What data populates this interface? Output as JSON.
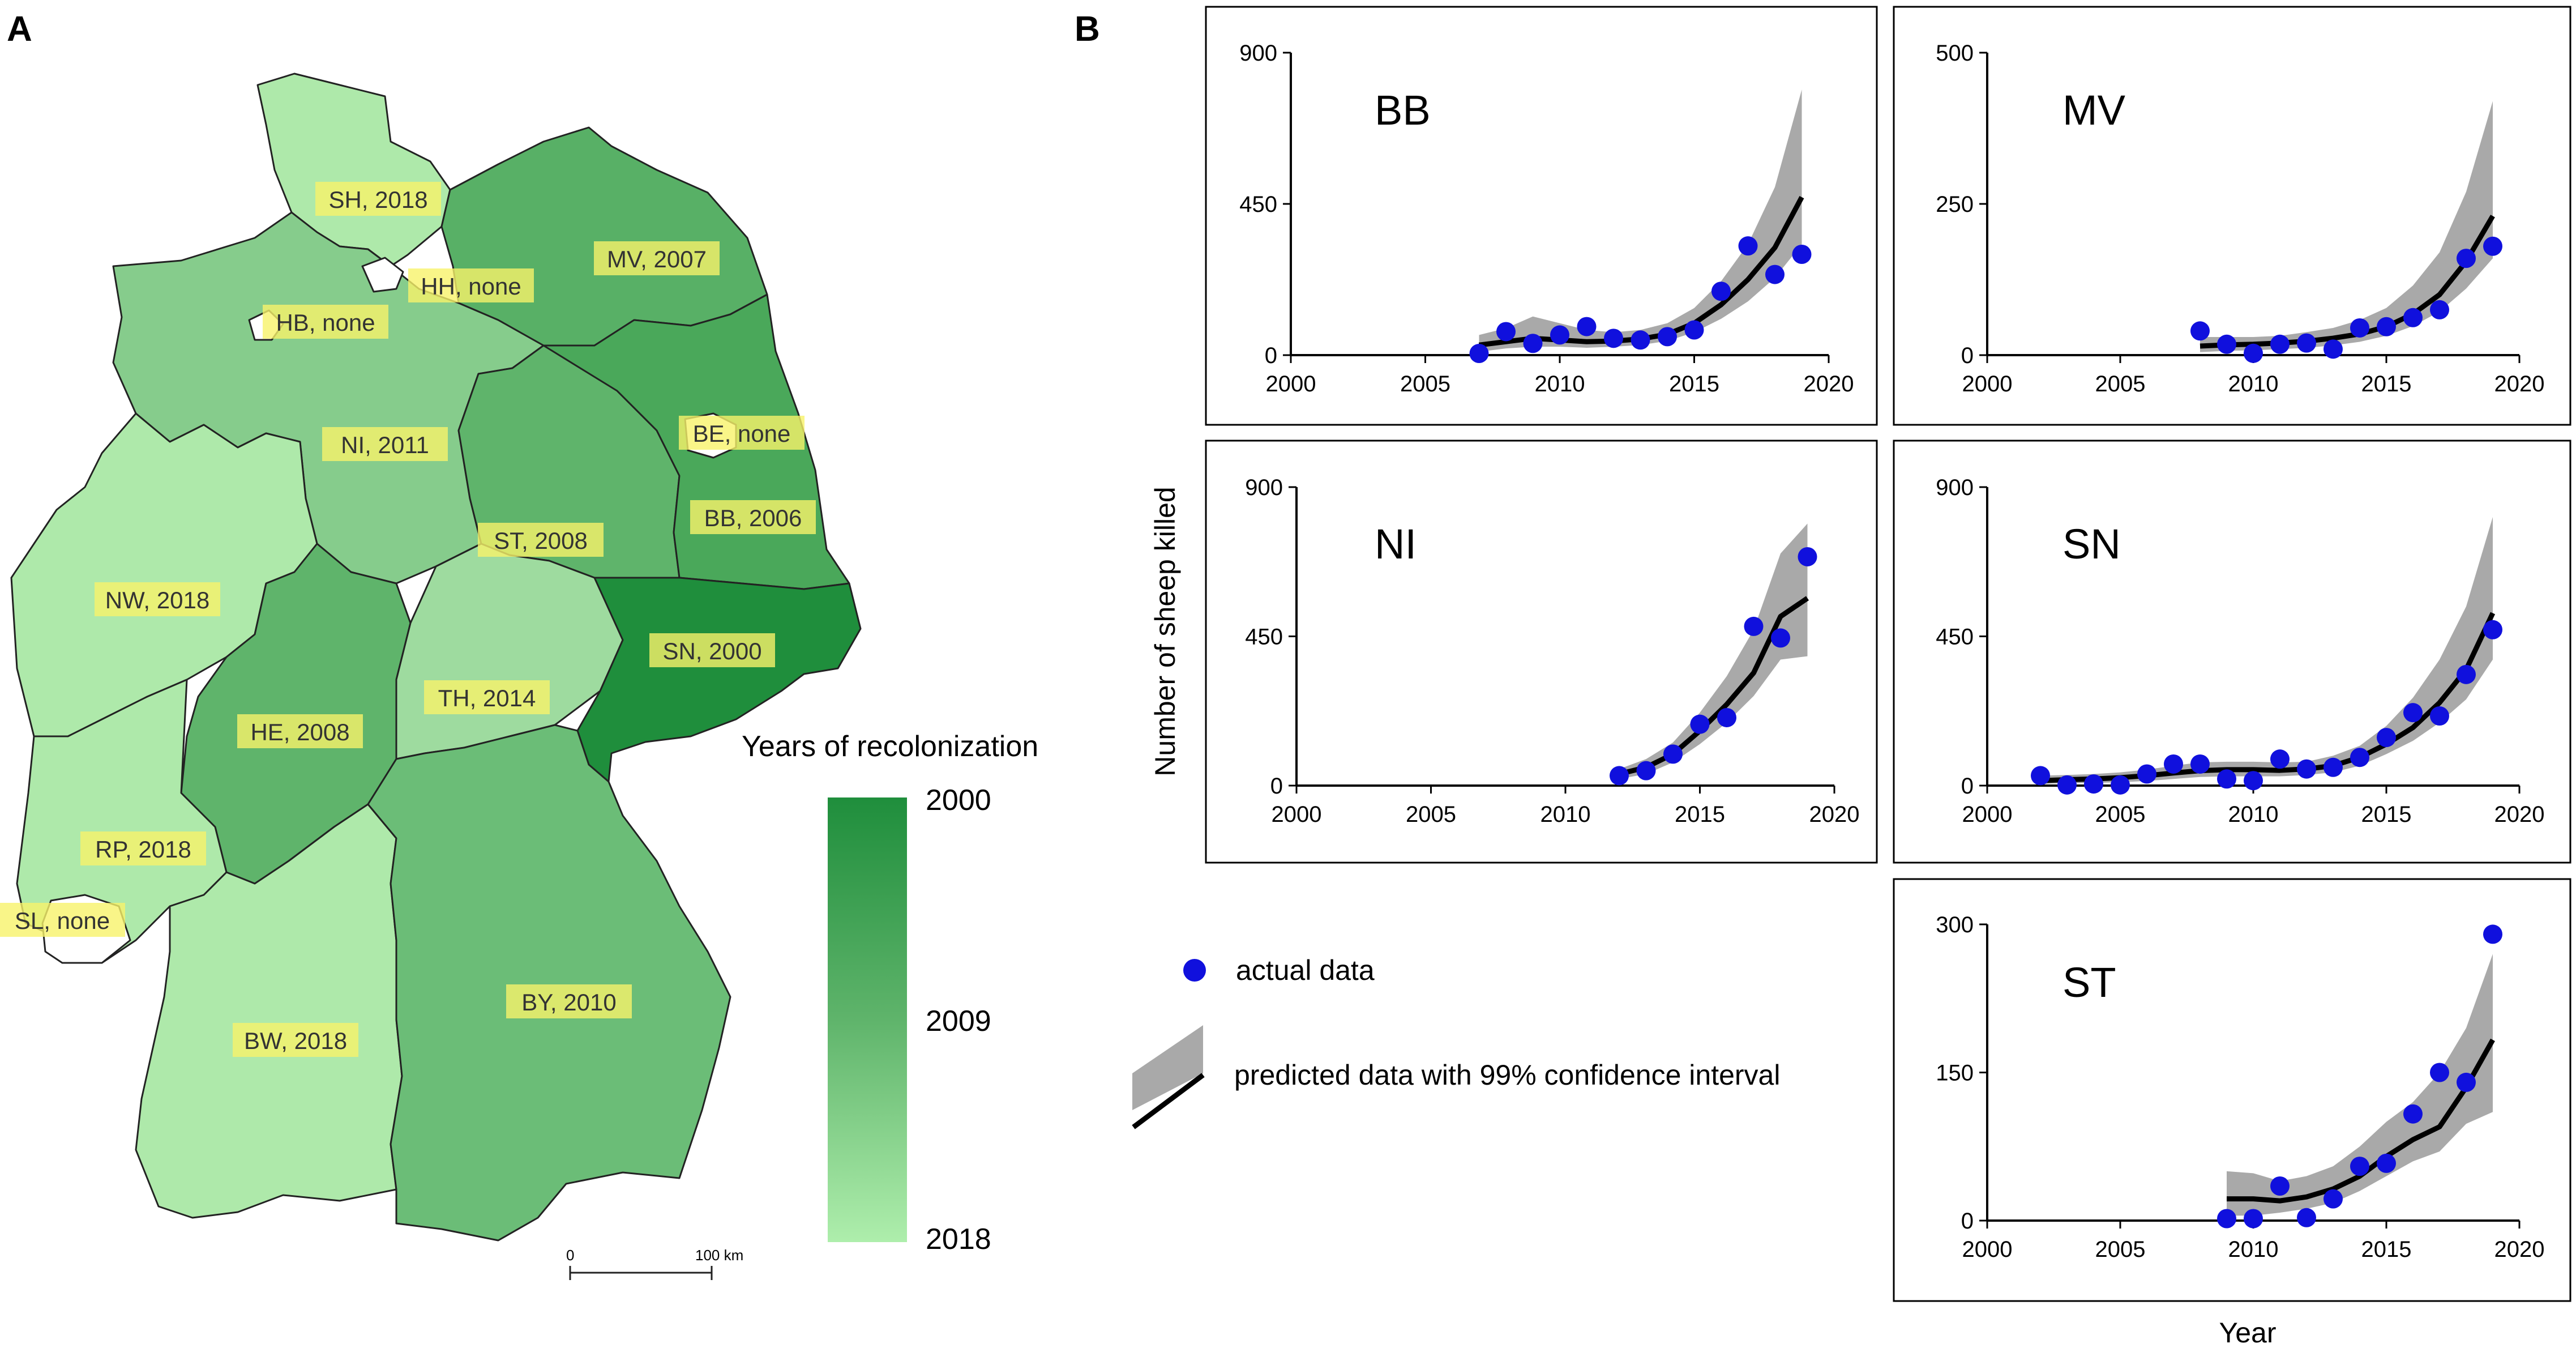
{
  "panel_labels": {
    "a": "A",
    "b": "B"
  },
  "map": {
    "legend_title": "Years of recolonization",
    "legend_ticks": [
      "2000",
      "2009",
      "2018"
    ],
    "scale_bar": {
      "start": "0",
      "end": "100 km"
    },
    "colors": {
      "y2000": "#1f8e3c",
      "y2006": "#4aa85a",
      "y2007": "#58b066",
      "y2008": "#5fb46b",
      "y2010": "#6bbd77",
      "y2011": "#86cc8c",
      "y2014": "#9edb9f",
      "y2018": "#aee9aa",
      "none": "#ffffff",
      "label_bg": "#f7f26a"
    },
    "states": {
      "SH": "SH, 2018",
      "MV": "MV, 2007",
      "HH": "HH, none",
      "HB": "HB, none",
      "NI": "NI, 2011",
      "BE": "BE, none",
      "BB": "BB, 2006",
      "ST": "ST, 2008",
      "NW": "NW, 2018",
      "SN": "SN, 2000",
      "HE": "HE, 2008",
      "TH": "TH, 2014",
      "RP": "RP, 2018",
      "SL": "SL, none",
      "BW": "BW, 2018",
      "BY": "BY, 2010"
    }
  },
  "axis_titles": {
    "y": "Number of sheep killed",
    "x": "Year"
  },
  "legend": {
    "actual": "actual data",
    "predicted": "predicted data with 99% confidence interval",
    "colors": {
      "point": "#1010dd",
      "band": "#a9a9a9",
      "line": "#000000"
    }
  },
  "chart_data": [
    {
      "type": "scatter",
      "title": "BB",
      "xlim": [
        2000,
        2020
      ],
      "ylim": [
        0,
        900
      ],
      "xticks": [
        "2000",
        "2005",
        "2010",
        "2015",
        "2020"
      ],
      "yticks": [
        "0",
        "450",
        "900"
      ],
      "x": [
        2007,
        2008,
        2009,
        2010,
        2011,
        2012,
        2013,
        2014,
        2015,
        2016,
        2017,
        2018,
        2019
      ],
      "actual": [
        5,
        70,
        35,
        60,
        85,
        50,
        45,
        55,
        75,
        190,
        325,
        240,
        300
      ],
      "predicted": [
        30,
        40,
        50,
        45,
        40,
        42,
        48,
        62,
        95,
        150,
        225,
        320,
        470
      ],
      "ci_low": [
        10,
        20,
        25,
        25,
        22,
        25,
        30,
        42,
        68,
        108,
        160,
        230,
        330
      ],
      "ci_high": [
        60,
        80,
        115,
        95,
        75,
        68,
        75,
        95,
        140,
        220,
        330,
        500,
        790
      ]
    },
    {
      "type": "scatter",
      "title": "MV",
      "xlim": [
        2000,
        2020
      ],
      "ylim": [
        0,
        500
      ],
      "xticks": [
        "2000",
        "2005",
        "2010",
        "2015",
        "2020"
      ],
      "yticks": [
        "0",
        "250",
        "500"
      ],
      "x": [
        2008,
        2009,
        2010,
        2011,
        2012,
        2013,
        2014,
        2015,
        2016,
        2017,
        2018,
        2019
      ],
      "actual": [
        40,
        18,
        3,
        18,
        20,
        10,
        45,
        47,
        62,
        75,
        160,
        180
      ],
      "predicted": [
        15,
        17,
        18,
        20,
        23,
        28,
        35,
        47,
        68,
        100,
        155,
        230
      ],
      "ci_low": [
        5,
        7,
        8,
        10,
        12,
        16,
        22,
        32,
        48,
        72,
        110,
        160
      ],
      "ci_high": [
        30,
        30,
        30,
        32,
        38,
        45,
        58,
        78,
        115,
        170,
        270,
        420
      ]
    },
    {
      "type": "scatter",
      "title": "NI",
      "xlim": [
        2000,
        2020
      ],
      "ylim": [
        0,
        900
      ],
      "xticks": [
        "2000",
        "2005",
        "2010",
        "2015",
        "2020"
      ],
      "yticks": [
        "0",
        "450",
        "900"
      ],
      "x": [
        2012,
        2013,
        2014,
        2015,
        2016,
        2017,
        2018,
        2019
      ],
      "actual": [
        30,
        45,
        95,
        185,
        205,
        480,
        445,
        690
      ],
      "predicted": [
        35,
        55,
        95,
        165,
        245,
        340,
        510,
        565
      ],
      "ci_low": [
        20,
        35,
        70,
        125,
        190,
        270,
        380,
        390
      ],
      "ci_high": [
        50,
        80,
        130,
        220,
        330,
        470,
        700,
        790
      ]
    },
    {
      "type": "scatter",
      "title": "SN",
      "xlim": [
        2000,
        2020
      ],
      "ylim": [
        0,
        900
      ],
      "xticks": [
        "2000",
        "2005",
        "2010",
        "2015",
        "2020"
      ],
      "yticks": [
        "0",
        "450",
        "900"
      ],
      "x": [
        2002,
        2003,
        2004,
        2005,
        2006,
        2007,
        2008,
        2009,
        2010,
        2011,
        2012,
        2013,
        2014,
        2015,
        2016,
        2017,
        2018,
        2019
      ],
      "actual": [
        30,
        2,
        5,
        2,
        35,
        65,
        65,
        20,
        15,
        80,
        50,
        55,
        85,
        145,
        220,
        210,
        335,
        470
      ],
      "predicted": [
        15,
        18,
        20,
        24,
        30,
        38,
        45,
        48,
        48,
        46,
        50,
        60,
        85,
        125,
        175,
        250,
        350,
        520
      ],
      "ci_low": [
        5,
        7,
        8,
        10,
        14,
        20,
        26,
        28,
        28,
        28,
        32,
        40,
        60,
        95,
        135,
        190,
        260,
        380
      ],
      "ci_high": [
        30,
        32,
        35,
        40,
        48,
        60,
        70,
        72,
        72,
        70,
        72,
        90,
        120,
        180,
        265,
        380,
        540,
        810
      ]
    },
    {
      "type": "scatter",
      "title": "ST",
      "xlim": [
        2000,
        2020
      ],
      "ylim": [
        0,
        300
      ],
      "xticks": [
        "2000",
        "2005",
        "2010",
        "2015",
        "2020"
      ],
      "yticks": [
        "0",
        "150",
        "300"
      ],
      "x": [
        2009,
        2010,
        2011,
        2012,
        2013,
        2014,
        2015,
        2016,
        2017,
        2018,
        2019
      ],
      "actual": [
        2,
        2,
        35,
        3,
        22,
        55,
        58,
        108,
        150,
        140,
        290
      ],
      "predicted": [
        22,
        22,
        20,
        24,
        32,
        45,
        65,
        82,
        95,
        135,
        183
      ],
      "ci_low": [
        5,
        5,
        8,
        12,
        18,
        30,
        45,
        60,
        70,
        98,
        110
      ],
      "ci_high": [
        50,
        48,
        40,
        45,
        55,
        75,
        100,
        120,
        150,
        195,
        270
      ]
    }
  ]
}
